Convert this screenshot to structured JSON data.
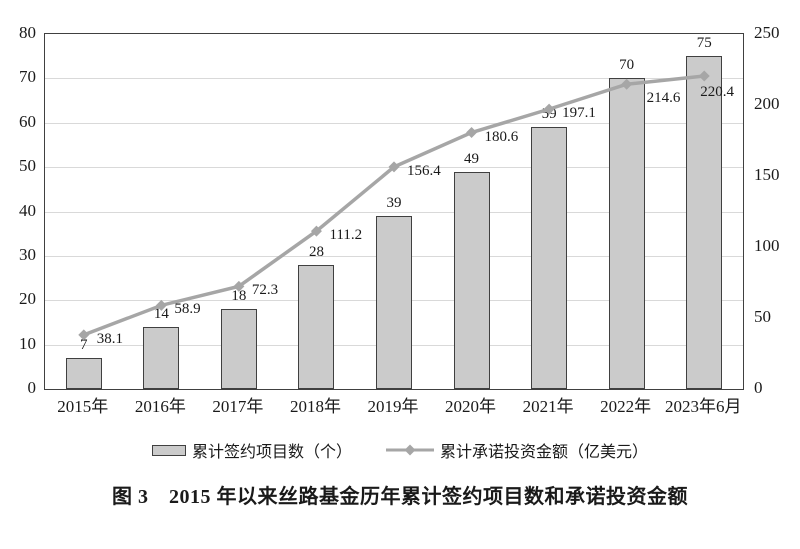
{
  "caption": "图 3　2015 年以来丝路基金历年累计签约项目数和承诺投资金额",
  "chart_data": {
    "type": "bar",
    "title": "",
    "categories": [
      "2015年",
      "2016年",
      "2017年",
      "2018年",
      "2019年",
      "2020年",
      "2021年",
      "2022年",
      "2023年6月"
    ],
    "series": [
      {
        "name": "累计签约项目数（个）",
        "type": "bar",
        "axis": "left",
        "values": [
          7,
          14,
          18,
          28,
          39,
          49,
          59,
          70,
          75
        ]
      },
      {
        "name": "累计承诺投资金额（亿美元）",
        "type": "line",
        "axis": "right",
        "values": [
          38.1,
          58.9,
          72.3,
          111.2,
          156.4,
          180.6,
          197.1,
          214.6,
          220.4
        ]
      }
    ],
    "left_axis": {
      "min": 0,
      "max": 80,
      "ticks": [
        0,
        10,
        20,
        30,
        40,
        50,
        60,
        70,
        80
      ]
    },
    "right_axis": {
      "min": 0,
      "max": 250,
      "ticks": [
        0,
        50,
        100,
        150,
        200,
        250
      ]
    },
    "grid": true,
    "data_labels": true,
    "legend_position": "bottom"
  },
  "colors": {
    "bar_fill": "#cbcbcb",
    "bar_border": "#404040",
    "line": "#a6a6a6",
    "marker": "#a6a6a6",
    "grid": "#d9d9d9",
    "axis_border": "#404040",
    "text": "#1a1a1a"
  }
}
